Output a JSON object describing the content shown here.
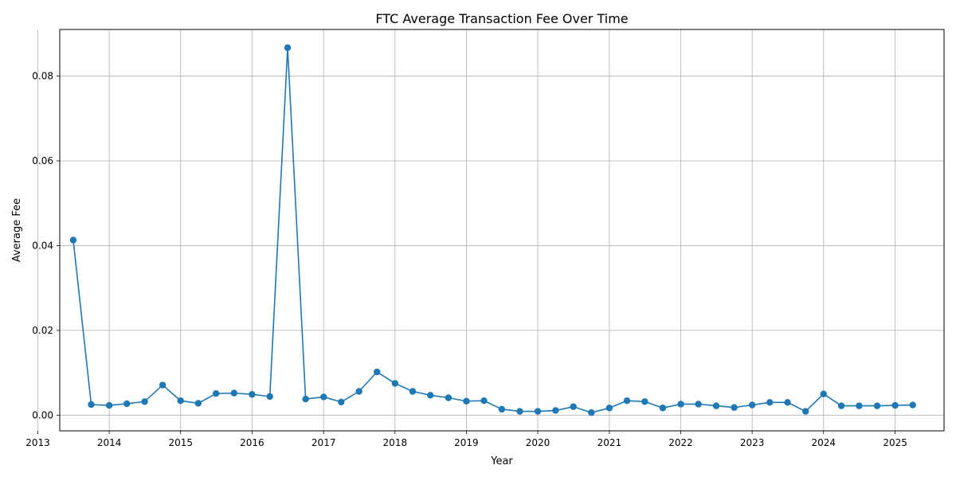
{
  "chart_data": {
    "type": "line",
    "title": "FTC Average Transaction Fee Over Time",
    "xlabel": "Year",
    "ylabel": "Average Fee",
    "x_ticks": [
      "2013",
      "2014",
      "2015",
      "2016",
      "2017",
      "2018",
      "2019",
      "2020",
      "2021",
      "2022",
      "2023",
      "2024",
      "2025"
    ],
    "y_ticks": [
      "0.00",
      "0.02",
      "0.04",
      "0.06",
      "0.08"
    ],
    "xlim": [
      "2013-04-23",
      "2025-09-08"
    ],
    "ylim": [
      -0.0037,
      0.091
    ],
    "grid": true,
    "legend": "none",
    "marker": "circle",
    "color": "#1f77b4",
    "x": [
      "2013-07-01",
      "2013-10-01",
      "2014-01-01",
      "2014-04-01",
      "2014-07-01",
      "2014-10-01",
      "2015-01-01",
      "2015-04-01",
      "2015-07-01",
      "2015-10-01",
      "2016-01-01",
      "2016-04-01",
      "2016-07-01",
      "2016-10-01",
      "2017-01-01",
      "2017-04-01",
      "2017-07-01",
      "2017-10-01",
      "2018-01-01",
      "2018-04-01",
      "2018-07-01",
      "2018-10-01",
      "2019-01-01",
      "2019-04-01",
      "2019-07-01",
      "2019-10-01",
      "2020-01-01",
      "2020-04-01",
      "2020-07-01",
      "2020-10-01",
      "2021-01-01",
      "2021-04-01",
      "2021-07-01",
      "2021-10-01",
      "2022-01-01",
      "2022-04-01",
      "2022-07-01",
      "2022-10-01",
      "2023-01-01",
      "2023-04-01",
      "2023-07-01",
      "2023-10-01",
      "2024-01-01",
      "2024-04-01",
      "2024-07-01",
      "2024-10-01",
      "2025-01-01",
      "2025-04-01"
    ],
    "values": [
      0.0413,
      0.0025,
      0.0023,
      0.0027,
      0.0032,
      0.0071,
      0.0034,
      0.0028,
      0.0051,
      0.0052,
      0.0049,
      0.0044,
      0.0867,
      0.0038,
      0.0043,
      0.0031,
      0.0056,
      0.0102,
      0.0075,
      0.0056,
      0.0047,
      0.0041,
      0.0033,
      0.0034,
      0.0014,
      0.0009,
      0.0009,
      0.0011,
      0.002,
      0.0006,
      0.0017,
      0.0034,
      0.0032,
      0.0017,
      0.0026,
      0.0026,
      0.0022,
      0.0018,
      0.0024,
      0.003,
      0.003,
      0.0009,
      0.005,
      0.0022,
      0.0022,
      0.0022,
      0.0023,
      0.0024
    ]
  }
}
